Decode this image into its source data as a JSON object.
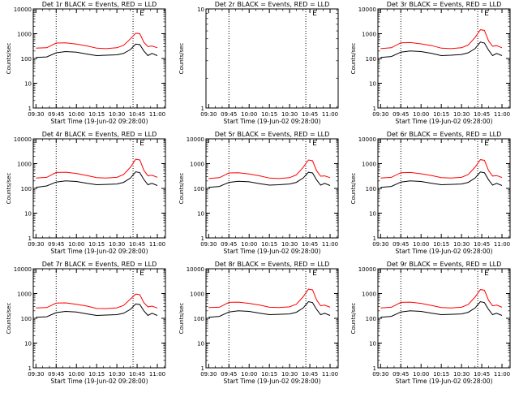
{
  "chart_data": [
    {
      "type": "line",
      "title": "Det 1r BLACK = Events, RED = LLD",
      "xlabel": "Start Time (19-Jun-02 09:28:00)",
      "ylabel": "Counts/sec",
      "yscale": "log",
      "ylim": [
        1,
        10000
      ],
      "x_ticks": [
        "09:30",
        "09:45",
        "10:00",
        "10:15",
        "10:30",
        "10:45",
        "11:00"
      ],
      "y_ticks": [
        "1",
        "10",
        "100",
        "1000",
        "10000"
      ],
      "has_data": true,
      "marker": "E",
      "x": [
        "09:30",
        "09:38",
        "09:45",
        "09:52",
        "10:00",
        "10:08",
        "10:15",
        "10:22",
        "10:30",
        "10:35",
        "10:40",
        "10:44",
        "10:47",
        "10:50",
        "10:53",
        "10:56",
        "11:00"
      ],
      "series": [
        {
          "name": "Events",
          "color": "#000000",
          "values": [
            110,
            115,
            170,
            190,
            180,
            150,
            130,
            135,
            140,
            160,
            230,
            380,
            360,
            200,
            130,
            160,
            130
          ]
        },
        {
          "name": "LLD",
          "color": "#ff0000",
          "values": [
            260,
            270,
            420,
            430,
            380,
            320,
            260,
            250,
            270,
            340,
            620,
            1050,
            1000,
            450,
            300,
            320,
            270
          ]
        }
      ]
    },
    {
      "type": "line",
      "title": "Det 2r BLACK = Events, RED = LLD",
      "xlabel": "Start Time (19-Jun-02 09:28:00)",
      "ylabel": "Counts/sec",
      "yscale": "log",
      "ylim": [
        1,
        10
      ],
      "x_ticks": [
        "09:30",
        "09:45",
        "10:00",
        "10:15",
        "10:30",
        "10:45",
        "11:00"
      ],
      "y_ticks": [
        "1",
        "10"
      ],
      "has_data": false,
      "marker": "E",
      "x": [],
      "series": []
    },
    {
      "type": "line",
      "title": "Det 3r BLACK = Events, RED = LLD",
      "xlabel": "Start Time (19-Jun-02 09:28:00)",
      "ylabel": "Counts/sec",
      "yscale": "log",
      "ylim": [
        1,
        10000
      ],
      "x_ticks": [
        "09:30",
        "09:45",
        "10:00",
        "10:15",
        "10:30",
        "10:45",
        "11:00"
      ],
      "y_ticks": [
        "1",
        "10",
        "100",
        "1000",
        "10000"
      ],
      "has_data": true,
      "marker": "E",
      "x": [
        "09:30",
        "09:38",
        "09:45",
        "09:52",
        "10:00",
        "10:08",
        "10:15",
        "10:22",
        "10:30",
        "10:35",
        "10:40",
        "10:44",
        "10:47",
        "10:50",
        "10:53",
        "10:56",
        "11:00"
      ],
      "series": [
        {
          "name": "Events",
          "color": "#000000",
          "values": [
            110,
            120,
            180,
            200,
            190,
            160,
            130,
            135,
            145,
            170,
            250,
            460,
            420,
            220,
            130,
            160,
            130
          ]
        },
        {
          "name": "LLD",
          "color": "#ff0000",
          "values": [
            250,
            270,
            430,
            440,
            390,
            330,
            260,
            250,
            270,
            350,
            700,
            1450,
            1350,
            520,
            310,
            330,
            270
          ]
        }
      ]
    },
    {
      "type": "line",
      "title": "Det 4r BLACK = Events, RED = LLD",
      "xlabel": "Start Time (19-Jun-02 09:28:00)",
      "ylabel": "Counts/sec",
      "yscale": "log",
      "ylim": [
        1,
        10000
      ],
      "x_ticks": [
        "09:30",
        "09:45",
        "10:00",
        "10:15",
        "10:30",
        "10:45",
        "11:00"
      ],
      "y_ticks": [
        "1",
        "10",
        "100",
        "1000",
        "10000"
      ],
      "has_data": true,
      "marker": "E",
      "x": [
        "09:30",
        "09:38",
        "09:45",
        "09:52",
        "10:00",
        "10:08",
        "10:15",
        "10:22",
        "10:30",
        "10:35",
        "10:40",
        "10:44",
        "10:47",
        "10:50",
        "10:53",
        "10:56",
        "11:00"
      ],
      "series": [
        {
          "name": "Events",
          "color": "#000000",
          "values": [
            110,
            125,
            180,
            200,
            190,
            160,
            140,
            145,
            150,
            175,
            260,
            470,
            430,
            230,
            140,
            160,
            130
          ]
        },
        {
          "name": "LLD",
          "color": "#ff0000",
          "values": [
            260,
            280,
            440,
            450,
            400,
            330,
            270,
            260,
            280,
            360,
            720,
            1500,
            1400,
            540,
            320,
            340,
            280
          ]
        }
      ]
    },
    {
      "type": "line",
      "title": "Det 5r BLACK = Events, RED = LLD",
      "xlabel": "Start Time (19-Jun-02 09:28:00)",
      "ylabel": "Counts/sec",
      "yscale": "log",
      "ylim": [
        1,
        10000
      ],
      "x_ticks": [
        "09:30",
        "09:45",
        "10:00",
        "10:15",
        "10:30",
        "10:45",
        "11:00"
      ],
      "y_ticks": [
        "1",
        "10",
        "100",
        "1000",
        "10000"
      ],
      "has_data": true,
      "marker": "E",
      "x": [
        "09:30",
        "09:38",
        "09:45",
        "09:52",
        "10:00",
        "10:08",
        "10:15",
        "10:22",
        "10:30",
        "10:35",
        "10:40",
        "10:44",
        "10:47",
        "10:50",
        "10:53",
        "10:56",
        "11:00"
      ],
      "series": [
        {
          "name": "Events",
          "color": "#000000",
          "values": [
            110,
            120,
            175,
            195,
            185,
            155,
            135,
            140,
            150,
            175,
            260,
            450,
            420,
            220,
            135,
            160,
            130
          ]
        },
        {
          "name": "LLD",
          "color": "#ff0000",
          "values": [
            250,
            270,
            420,
            430,
            380,
            320,
            260,
            250,
            270,
            350,
            700,
            1400,
            1300,
            520,
            310,
            320,
            270
          ]
        }
      ]
    },
    {
      "type": "line",
      "title": "Det 6r BLACK = Events, RED = LLD",
      "xlabel": "Start Time (19-Jun-02 09:28:00)",
      "ylabel": "Counts/sec",
      "yscale": "log",
      "ylim": [
        1,
        10000
      ],
      "x_ticks": [
        "09:30",
        "09:45",
        "10:00",
        "10:15",
        "10:30",
        "10:45",
        "11:00"
      ],
      "y_ticks": [
        "1",
        "10",
        "100",
        "1000",
        "10000"
      ],
      "has_data": true,
      "marker": "E",
      "x": [
        "09:30",
        "09:38",
        "09:45",
        "09:52",
        "10:00",
        "10:08",
        "10:15",
        "10:22",
        "10:30",
        "10:35",
        "10:40",
        "10:44",
        "10:47",
        "10:50",
        "10:53",
        "10:56",
        "11:00"
      ],
      "series": [
        {
          "name": "Events",
          "color": "#000000",
          "values": [
            110,
            120,
            180,
            200,
            190,
            160,
            140,
            145,
            150,
            175,
            260,
            460,
            430,
            225,
            135,
            160,
            130
          ]
        },
        {
          "name": "LLD",
          "color": "#ff0000",
          "values": [
            260,
            280,
            430,
            440,
            390,
            330,
            270,
            260,
            280,
            360,
            720,
            1450,
            1350,
            530,
            315,
            330,
            275
          ]
        }
      ]
    },
    {
      "type": "line",
      "title": "Det 7r BLACK = Events, RED = LLD",
      "xlabel": "Start Time (19-Jun-02 09:28:00)",
      "ylabel": "Counts/sec",
      "yscale": "log",
      "ylim": [
        1,
        10000
      ],
      "x_ticks": [
        "09:30",
        "09:45",
        "10:00",
        "10:15",
        "10:30",
        "10:45",
        "11:00"
      ],
      "y_ticks": [
        "1",
        "10",
        "100",
        "1000",
        "10000"
      ],
      "has_data": true,
      "marker": "E",
      "x": [
        "09:30",
        "09:38",
        "09:45",
        "09:52",
        "10:00",
        "10:08",
        "10:15",
        "10:22",
        "10:30",
        "10:35",
        "10:40",
        "10:44",
        "10:47",
        "10:50",
        "10:53",
        "10:56",
        "11:00"
      ],
      "series": [
        {
          "name": "Events",
          "color": "#000000",
          "values": [
            110,
            115,
            170,
            190,
            180,
            150,
            130,
            135,
            140,
            160,
            230,
            380,
            360,
            200,
            130,
            160,
            130
          ]
        },
        {
          "name": "LLD",
          "color": "#ff0000",
          "values": [
            260,
            270,
            410,
            420,
            370,
            310,
            250,
            245,
            265,
            330,
            600,
            950,
            900,
            430,
            290,
            310,
            260
          ]
        }
      ]
    },
    {
      "type": "line",
      "title": "Det 8r BLACK = Events, RED = LLD",
      "xlabel": "Start Time (19-Jun-02 09:28:00)",
      "ylabel": "Counts/sec",
      "yscale": "log",
      "ylim": [
        1,
        10000
      ],
      "x_ticks": [
        "09:30",
        "09:45",
        "10:00",
        "10:15",
        "10:30",
        "10:45",
        "11:00"
      ],
      "y_ticks": [
        "1",
        "10",
        "100",
        "1000",
        "10000"
      ],
      "has_data": true,
      "marker": "E",
      "x": [
        "09:30",
        "09:38",
        "09:45",
        "09:52",
        "10:00",
        "10:08",
        "10:15",
        "10:22",
        "10:30",
        "10:35",
        "10:40",
        "10:44",
        "10:47",
        "10:50",
        "10:53",
        "10:56",
        "11:00"
      ],
      "series": [
        {
          "name": "Events",
          "color": "#000000",
          "values": [
            110,
            120,
            180,
            200,
            190,
            160,
            140,
            145,
            150,
            175,
            260,
            470,
            430,
            230,
            140,
            160,
            130
          ]
        },
        {
          "name": "LLD",
          "color": "#ff0000",
          "values": [
            270,
            280,
            440,
            450,
            400,
            340,
            280,
            270,
            290,
            370,
            740,
            1500,
            1400,
            550,
            320,
            340,
            280
          ]
        }
      ]
    },
    {
      "type": "line",
      "title": "Det 9r BLACK = Events, RED = LLD",
      "xlabel": "Start Time (19-Jun-02 09:28:00)",
      "ylabel": "Counts/sec",
      "yscale": "log",
      "ylim": [
        1,
        10000
      ],
      "x_ticks": [
        "09:30",
        "09:45",
        "10:00",
        "10:15",
        "10:30",
        "10:45",
        "11:00"
      ],
      "y_ticks": [
        "1",
        "10",
        "100",
        "1000",
        "10000"
      ],
      "has_data": true,
      "marker": "E",
      "x": [
        "09:30",
        "09:38",
        "09:45",
        "09:52",
        "10:00",
        "10:08",
        "10:15",
        "10:22",
        "10:30",
        "10:35",
        "10:40",
        "10:44",
        "10:47",
        "10:50",
        "10:53",
        "10:56",
        "11:00"
      ],
      "series": [
        {
          "name": "Events",
          "color": "#000000",
          "values": [
            110,
            120,
            180,
            200,
            190,
            160,
            140,
            145,
            150,
            175,
            260,
            470,
            430,
            230,
            140,
            160,
            130
          ]
        },
        {
          "name": "LLD",
          "color": "#ff0000",
          "values": [
            260,
            280,
            440,
            450,
            400,
            330,
            270,
            260,
            280,
            360,
            720,
            1450,
            1350,
            540,
            320,
            340,
            280
          ]
        }
      ]
    }
  ]
}
